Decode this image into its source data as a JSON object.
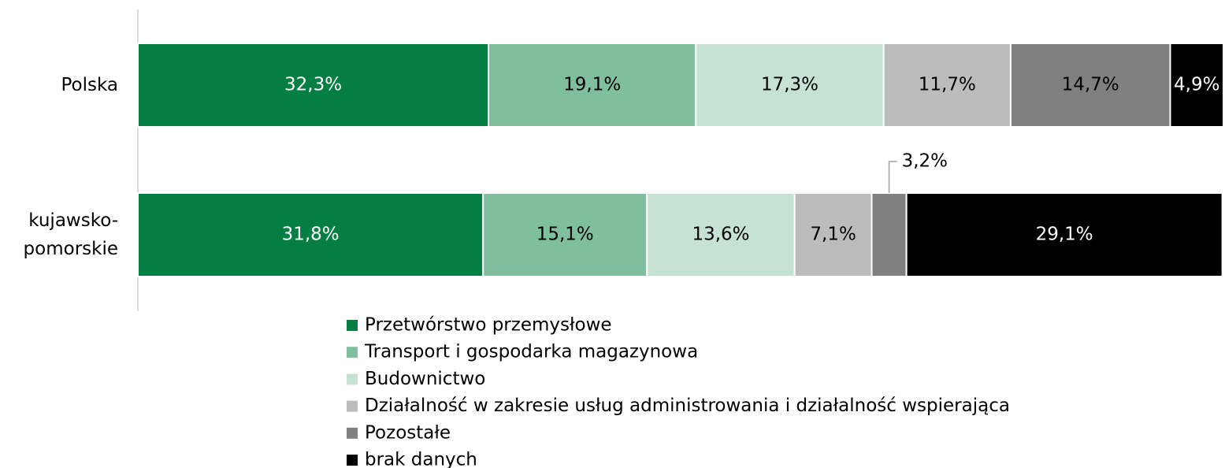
{
  "chart_data": {
    "type": "stacked_barh",
    "categories": [
      "Polska",
      "kujawsko-pomorskie"
    ],
    "xlim": [
      0,
      100
    ],
    "legend": "bottom",
    "series": [
      {
        "name": "Przetwórstwo przemysłowe",
        "color": "#047e42",
        "values": [
          32.3,
          31.8
        ],
        "value_labels": [
          "32,3%",
          "31,8%"
        ]
      },
      {
        "name": "Transport i gospodarka magazynowa",
        "color": "#7fbf9e",
        "values": [
          19.1,
          15.1
        ],
        "value_labels": [
          "19,1%",
          "15,1%"
        ]
      },
      {
        "name": "Budownictwo",
        "color": "#c6e2d3",
        "values": [
          17.3,
          13.6
        ],
        "value_labels": [
          "17,3%",
          "13,6%"
        ]
      },
      {
        "name": "Działalność w zakresie usług administrowania i działalność wspierająca",
        "color": "#bcbcbc",
        "values": [
          11.7,
          7.1
        ],
        "value_labels": [
          "11,7%",
          "7,1%"
        ]
      },
      {
        "name": "Pozostałe",
        "color": "#808080",
        "values": [
          14.7,
          3.2
        ],
        "value_labels": [
          "14,7%",
          "3,2%"
        ]
      },
      {
        "name": "brak danych",
        "color": "#000000",
        "values": [
          4.9,
          29.1
        ],
        "value_labels": [
          "4,9%",
          "29,1%"
        ]
      }
    ]
  }
}
